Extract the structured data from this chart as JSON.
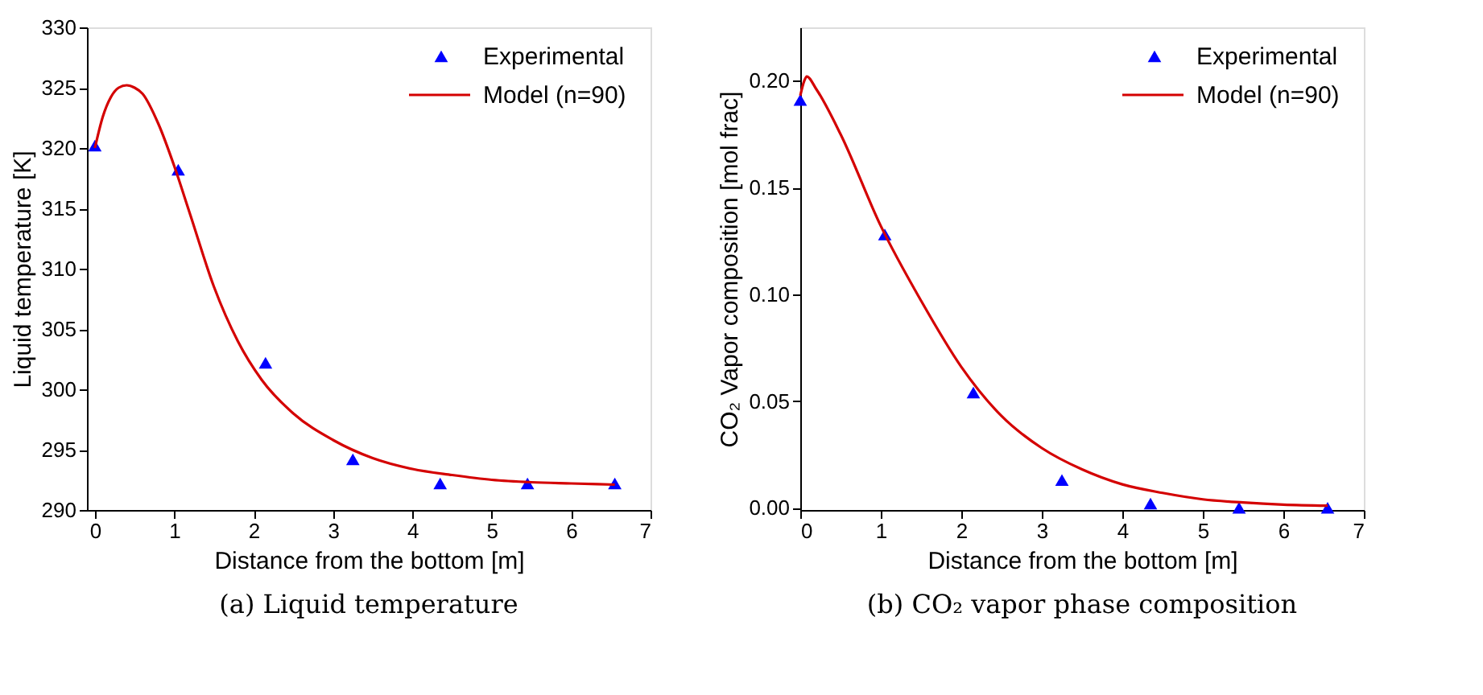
{
  "chart_data": [
    {
      "type": "scatter",
      "title": "(a) Liquid temperature",
      "xlabel": "Distance from the bottom [m]",
      "ylabel": "Liquid temperature [K]",
      "xlim": [
        -0.1,
        7
      ],
      "xticks": [
        0,
        1,
        2,
        3,
        4,
        5,
        6,
        7
      ],
      "ylim": [
        290,
        330
      ],
      "yticks": [
        290,
        295,
        300,
        305,
        310,
        315,
        320,
        325,
        330
      ],
      "grid": false,
      "legend": "top right",
      "series": [
        {
          "name": "Experimental",
          "marker": "triangle",
          "color": "#0000ff",
          "x": [
            0,
            1.05,
            2.15,
            3.25,
            4.35,
            5.45,
            6.55
          ],
          "values": [
            320.2,
            318.2,
            302.2,
            294.2,
            292.2,
            292.2,
            292.2
          ]
        },
        {
          "name": "Model (n=90)",
          "type": "line",
          "marker": "none",
          "line_style": "solid",
          "color": "#d40000",
          "x": [
            0,
            0.1,
            0.2,
            0.3,
            0.4,
            0.5,
            0.6,
            0.8,
            1.0,
            1.2,
            1.5,
            1.8,
            2.1,
            2.5,
            3.0,
            3.5,
            4.0,
            4.5,
            5.0,
            5.5,
            6.0,
            6.55
          ],
          "values": [
            320.0,
            322.6,
            324.2,
            325.0,
            325.2,
            325.0,
            324.5,
            322.0,
            318.5,
            314.5,
            308.5,
            304.0,
            300.8,
            298.0,
            295.8,
            294.3,
            293.4,
            292.9,
            292.5,
            292.3,
            292.2,
            292.1
          ]
        }
      ]
    },
    {
      "type": "scatter",
      "title": "(b) CO₂ vapor phase composition",
      "xlabel": "Distance from the bottom [m]",
      "ylabel": "CO₂ Vapor composition [mol frac]",
      "xlim": [
        0,
        7
      ],
      "xticks": [
        0,
        1,
        2,
        3,
        4,
        5,
        6,
        7
      ],
      "ylim": [
        -0.001,
        0.225
      ],
      "yticks": [
        {
          "value": 0,
          "label": "0.00"
        },
        {
          "value": 0.05,
          "label": "0.05"
        },
        {
          "value": 0.1,
          "label": "0.10"
        },
        {
          "value": 0.15,
          "label": "0.15"
        },
        {
          "value": 0.2,
          "label": "0.20"
        }
      ],
      "grid": false,
      "legend": "top right",
      "series": [
        {
          "name": "Experimental",
          "marker": "triangle",
          "color": "#0000ff",
          "x": [
            0,
            1.05,
            2.15,
            3.25,
            4.35,
            5.45,
            6.55
          ],
          "values": [
            0.191,
            0.128,
            0.054,
            0.013,
            0.002,
            0.0,
            0.0
          ]
        },
        {
          "name": "Model (n=90)",
          "type": "line",
          "marker": "none",
          "line_style": "solid",
          "color": "#d40000",
          "x": [
            0,
            0.05,
            0.08,
            0.2,
            0.5,
            1.0,
            1.5,
            2.0,
            2.5,
            3.0,
            3.5,
            4.0,
            4.5,
            5.0,
            5.5,
            6.0,
            6.55
          ],
          "values": [
            0.193,
            0.2,
            0.202,
            0.196,
            0.175,
            0.132,
            0.097,
            0.066,
            0.043,
            0.028,
            0.018,
            0.011,
            0.007,
            0.004,
            0.0025,
            0.0015,
            0.001
          ]
        }
      ]
    }
  ]
}
